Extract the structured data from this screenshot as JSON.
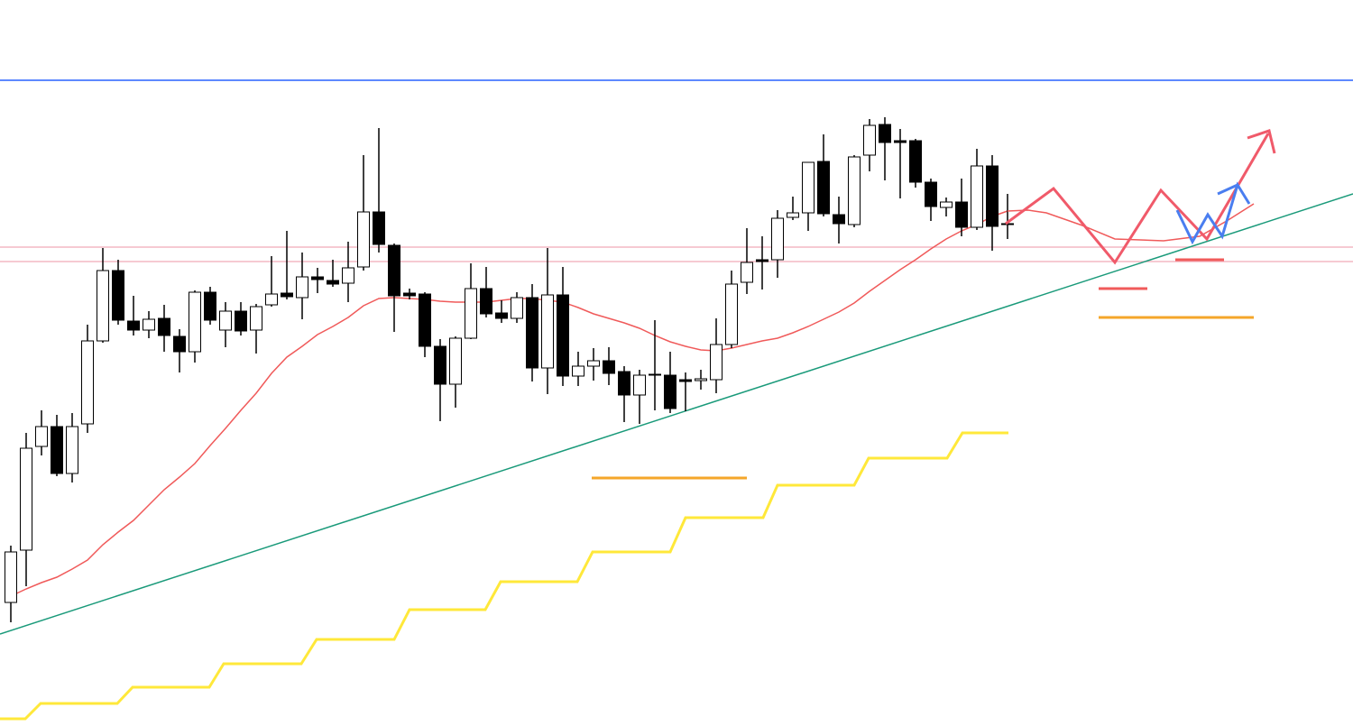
{
  "chart_data": {
    "type": "candlestick",
    "ylim": [
      0,
      805
    ],
    "bull_color": "#ffffff",
    "bear_color": "#000000",
    "outline_color": "#000000",
    "open": [
      137,
      195,
      310,
      332,
      280,
      335,
      427,
      505,
      449,
      439,
      452,
      432,
      415,
      481,
      439,
      460,
      439,
      467,
      480,
      475,
      498,
      494,
      491,
      509,
      570,
      533,
      480,
      479,
      421,
      379,
      430,
      485,
      458,
      452,
      475,
      397,
      478,
      388,
      399,
      405,
      393,
      367,
      390,
      389,
      384,
      383,
      384,
      423,
      492,
      517,
      517,
      564,
      569,
      626,
      567,
      556,
      633,
      667,
      649,
      649,
      603,
      575,
      581,
      553,
      621,
      557
    ],
    "high": [
      200,
      325,
      350,
      345,
      347,
      445,
      530,
      517,
      477,
      460,
      467,
      440,
      483,
      487,
      470,
      470,
      468,
      521,
      549,
      525,
      508,
      517,
      537,
      633,
      663,
      535,
      485,
      481,
      429,
      432,
      513,
      509,
      472,
      481,
      490,
      530,
      509,
      415,
      419,
      420,
      399,
      395,
      450,
      415,
      392,
      395,
      452,
      505,
      552,
      543,
      572,
      587,
      625,
      656,
      587,
      633,
      673,
      675,
      662,
      651,
      607,
      586,
      607,
      640,
      633,
      590
    ],
    "low": [
      115,
      155,
      300,
      277,
      270,
      325,
      425,
      445,
      433,
      430,
      415,
      392,
      403,
      445,
      420,
      433,
      413,
      465,
      473,
      451,
      480,
      487,
      470,
      505,
      525,
      437,
      473,
      409,
      338,
      353,
      429,
      453,
      447,
      447,
      382,
      368,
      377,
      377,
      383,
      378,
      337,
      335,
      350,
      347,
      349,
      373,
      369,
      419,
      479,
      484,
      497,
      561,
      549,
      565,
      535,
      553,
      615,
      605,
      585,
      597,
      560,
      565,
      543,
      550,
      527,
      540
    ],
    "close": [
      193,
      308,
      332,
      280,
      332,
      427,
      505,
      450,
      439,
      451,
      433,
      415,
      481,
      450,
      460,
      438,
      465,
      479,
      476,
      498,
      495,
      490,
      508,
      570,
      534,
      477,
      477,
      421,
      379,
      430,
      485,
      457,
      452,
      475,
      397,
      478,
      388,
      399,
      405,
      391,
      367,
      389,
      389,
      352,
      382,
      385,
      423,
      490,
      514,
      515,
      563,
      569,
      625,
      568,
      557,
      631,
      666,
      647,
      647,
      603,
      576,
      581,
      553,
      621,
      554,
      556
    ],
    "ma": {
      "color": "#f05a5a",
      "values": [
        144,
        152,
        159,
        165,
        174,
        184,
        201,
        215,
        228,
        245,
        262,
        276,
        291,
        311,
        330,
        350,
        369,
        391,
        409,
        421,
        434,
        443,
        453,
        466,
        474,
        475,
        474,
        473,
        471,
        470,
        470,
        470,
        472,
        474,
        474,
        472,
        470,
        464,
        457,
        452,
        447,
        441,
        433,
        426,
        421,
        417,
        416,
        419,
        423,
        427,
        430,
        436,
        443,
        451,
        459,
        469,
        482,
        494,
        506,
        517,
        529,
        540,
        549,
        556,
        565,
        571
      ]
    },
    "levels": [
      {
        "value": 716,
        "color": "#2962ff"
      },
      {
        "value": 531,
        "color": "#f4b8c4"
      },
      {
        "value": 515,
        "color": "#f4b8c4"
      }
    ]
  }
}
